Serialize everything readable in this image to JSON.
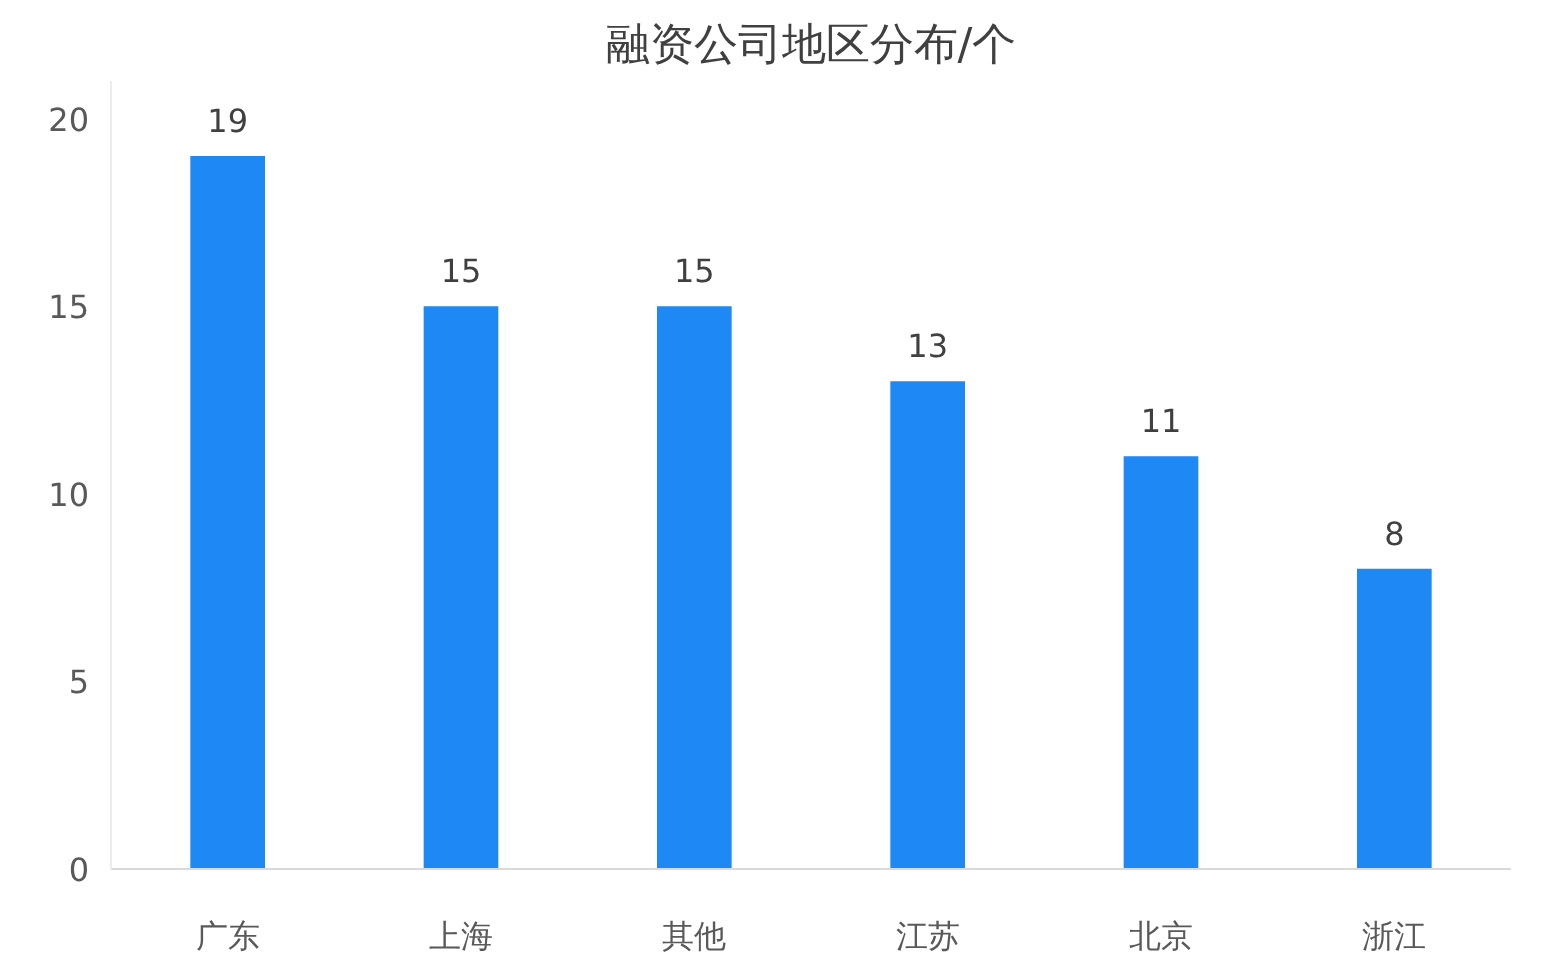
{
  "chart_data": {
    "type": "bar",
    "title": "融资公司地区分布/个",
    "categories": [
      "广东",
      "上海",
      "其他",
      "江苏",
      "北京",
      "浙江"
    ],
    "values": [
      19,
      15,
      15,
      13,
      11,
      8
    ],
    "color": "#1e88f5",
    "ylim": [
      0,
      21
    ],
    "yticks": [
      0,
      5,
      10,
      15,
      20
    ],
    "grid": false,
    "data_labels": true
  }
}
